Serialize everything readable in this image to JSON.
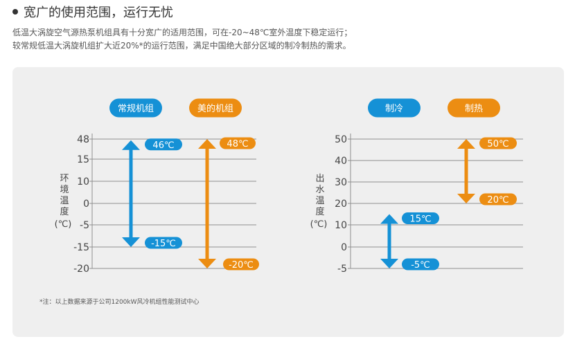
{
  "header": {
    "title": "宽广的使用范围，运行无忧",
    "line1": "低温大涡旋空气源热泵机组具有十分宽广的适用范围，可在-20~48℃室外温度下稳定运行；",
    "line2": "较常规低温大涡旋机组扩大近20%*的运行范围，满足中国绝大部分区域的制冷制热的需求。"
  },
  "chart_data": [
    {
      "type": "range",
      "ylabel": "环境温度(℃)",
      "yticks": [
        48,
        15,
        10,
        0,
        -5,
        -15,
        -20
      ],
      "series": [
        {
          "name": "常规机组",
          "min": -15,
          "max": 46,
          "min_label": "-15℃",
          "max_label": "46℃",
          "color": "#1591d6"
        },
        {
          "name": "美的机组",
          "min": -20,
          "max": 48,
          "min_label": "-20℃",
          "max_label": "48℃",
          "color": "#ec8d12"
        }
      ]
    },
    {
      "type": "range",
      "ylabel": "出水温度(℃)",
      "yticks": [
        50,
        40,
        30,
        20,
        10,
        0,
        -5
      ],
      "series": [
        {
          "name": "制冷",
          "min": -5,
          "max": 15,
          "min_label": "-5℃",
          "max_label": "15℃",
          "color": "#1591d6"
        },
        {
          "name": "制热",
          "min": 20,
          "max": 50,
          "min_label": "20℃",
          "max_label": "50℃",
          "color": "#ec8d12"
        }
      ]
    }
  ],
  "note": "*注：以上数据来源于公司1200kW风冷机组性能测试中心"
}
